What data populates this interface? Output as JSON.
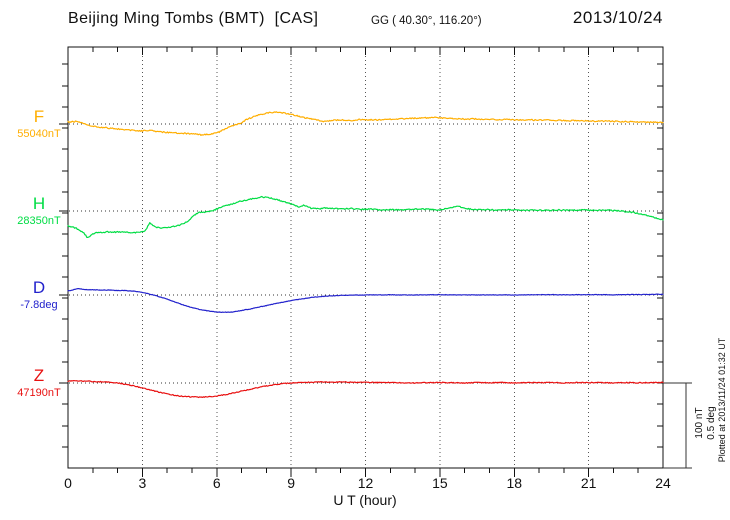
{
  "plotted_note": "Plotted at 2013/11/24 01:32 UT",
  "chart_data": {
    "type": "line",
    "title": "Beijing Ming Tombs (BMT)  [CAS]",
    "subtitle": "GG ( 40.30°, 116.20°)",
    "date": "2013/10/24",
    "xlabel": "U T (hour)",
    "x_range": [
      0,
      24
    ],
    "x_ticks": [
      0,
      3,
      6,
      9,
      12,
      15,
      18,
      21,
      24
    ],
    "grid": "dotted vertical lines every 3 h, dotted horizontal baseline per trace",
    "legend_position": "left",
    "scale_bar": {
      "nT": 100,
      "deg": 0.5,
      "nT_label": "100 nT",
      "deg_label": "0.5 deg"
    },
    "series": [
      {
        "name": "F",
        "baseline_label": "55040nT",
        "baseline_value": 55040,
        "unit": "nT",
        "color": "#FFAE00",
        "points": [
          [
            0,
            2.4
          ],
          [
            0.3,
            2.9
          ],
          [
            0.6,
            1.2
          ],
          [
            0.9,
            -1.8
          ],
          [
            1.2,
            -3.5
          ],
          [
            1.8,
            -5.3
          ],
          [
            2.4,
            -6.8
          ],
          [
            3,
            -8.2
          ],
          [
            3.3,
            -7.1
          ],
          [
            3.7,
            -9.4
          ],
          [
            4.2,
            -10.2
          ],
          [
            4.7,
            -11
          ],
          [
            5.1,
            -11.8
          ],
          [
            5.4,
            -12.9
          ],
          [
            5.8,
            -11.8
          ],
          [
            6.1,
            -9.4
          ],
          [
            6.5,
            -3.5
          ],
          [
            6.7,
            -1.2
          ],
          [
            6.9,
            0
          ],
          [
            7.2,
            5.3
          ],
          [
            7.6,
            10
          ],
          [
            8,
            12.9
          ],
          [
            8.4,
            14.1
          ],
          [
            8.8,
            12.4
          ],
          [
            9.2,
            10
          ],
          [
            9.6,
            7.1
          ],
          [
            10,
            5.3
          ],
          [
            10.3,
            2.9
          ],
          [
            10.6,
            4.1
          ],
          [
            11,
            4.7
          ],
          [
            11.4,
            4.1
          ],
          [
            11.8,
            5.3
          ],
          [
            12.3,
            4.7
          ],
          [
            12.8,
            5.3
          ],
          [
            13.3,
            5.9
          ],
          [
            13.8,
            6.5
          ],
          [
            14.3,
            7.1
          ],
          [
            14.8,
            7.6
          ],
          [
            15.3,
            6.5
          ],
          [
            15.8,
            5.9
          ],
          [
            16.4,
            5.9
          ],
          [
            17,
            5.3
          ],
          [
            17.6,
            5.3
          ],
          [
            18.2,
            4.7
          ],
          [
            18.8,
            4.7
          ],
          [
            19.4,
            4.4
          ],
          [
            20,
            4.1
          ],
          [
            20.6,
            3.8
          ],
          [
            21.2,
            3.5
          ],
          [
            21.8,
            3.2
          ],
          [
            22.4,
            2.9
          ],
          [
            23,
            2.4
          ],
          [
            23.5,
            2.1
          ],
          [
            24,
            1.8
          ]
        ]
      },
      {
        "name": "H",
        "baseline_label": "28350nT",
        "baseline_value": 28350,
        "unit": "nT",
        "color": "#00DD44",
        "points": [
          [
            0,
            -17.6
          ],
          [
            0.3,
            -20
          ],
          [
            0.6,
            -24.7
          ],
          [
            0.8,
            -31.8
          ],
          [
            1,
            -27.1
          ],
          [
            1.2,
            -25.3
          ],
          [
            1.6,
            -24.7
          ],
          [
            2,
            -24.7
          ],
          [
            2.4,
            -25.3
          ],
          [
            2.8,
            -25.3
          ],
          [
            3.1,
            -24.1
          ],
          [
            3.3,
            -14.1
          ],
          [
            3.5,
            -18.8
          ],
          [
            3.8,
            -20
          ],
          [
            4.1,
            -18.8
          ],
          [
            4.4,
            -17.6
          ],
          [
            4.7,
            -14.1
          ],
          [
            4.9,
            -10.6
          ],
          [
            5.1,
            -4.7
          ],
          [
            5.3,
            -1.8
          ],
          [
            5.6,
            -1.2
          ],
          [
            5.9,
            1.2
          ],
          [
            6.2,
            4.7
          ],
          [
            6.6,
            8.2
          ],
          [
            7,
            11.8
          ],
          [
            7.4,
            14.1
          ],
          [
            7.8,
            16.5
          ],
          [
            8.2,
            15.3
          ],
          [
            8.6,
            11.8
          ],
          [
            9,
            8.2
          ],
          [
            9.3,
            4.7
          ],
          [
            9.5,
            6.5
          ],
          [
            9.8,
            3.5
          ],
          [
            10.1,
            2.4
          ],
          [
            10.4,
            3.5
          ],
          [
            10.7,
            2.9
          ],
          [
            11,
            2.4
          ],
          [
            11.4,
            2.9
          ],
          [
            11.8,
            1.8
          ],
          [
            12.2,
            2.4
          ],
          [
            12.6,
            1.2
          ],
          [
            13,
            1.8
          ],
          [
            13.4,
            1.2
          ],
          [
            13.8,
            1.8
          ],
          [
            14.2,
            2.4
          ],
          [
            14.6,
            1.8
          ],
          [
            15,
            1.2
          ],
          [
            15.4,
            3.5
          ],
          [
            15.7,
            5.9
          ],
          [
            16,
            3.5
          ],
          [
            16.3,
            1.8
          ],
          [
            16.8,
            1.8
          ],
          [
            17.3,
            1.2
          ],
          [
            17.8,
            1.5
          ],
          [
            18.3,
            0.9
          ],
          [
            18.8,
            1.2
          ],
          [
            19.3,
            0.6
          ],
          [
            19.8,
            1.2
          ],
          [
            20.3,
            0.9
          ],
          [
            20.8,
            1.2
          ],
          [
            21.3,
            0.6
          ],
          [
            21.8,
            0.9
          ],
          [
            22.3,
            0
          ],
          [
            22.8,
            -1.8
          ],
          [
            23.2,
            -4.1
          ],
          [
            23.6,
            -7.1
          ],
          [
            24,
            -10.6
          ]
        ]
      },
      {
        "name": "D",
        "baseline_label": "-7.8deg",
        "baseline_value": -7.8,
        "unit": "deg",
        "color": "#2222CC",
        "points": [
          [
            0,
            0.024
          ],
          [
            0.4,
            0.038
          ],
          [
            0.7,
            0.032
          ],
          [
            1,
            0.031
          ],
          [
            1.4,
            0.029
          ],
          [
            1.8,
            0.028
          ],
          [
            2.2,
            0.026
          ],
          [
            2.6,
            0.024
          ],
          [
            3,
            0.015
          ],
          [
            3.4,
            0.002
          ],
          [
            3.8,
            -0.015
          ],
          [
            4.2,
            -0.035
          ],
          [
            4.6,
            -0.056
          ],
          [
            5,
            -0.074
          ],
          [
            5.4,
            -0.088
          ],
          [
            5.8,
            -0.097
          ],
          [
            6.2,
            -0.102
          ],
          [
            6.6,
            -0.101
          ],
          [
            7,
            -0.091
          ],
          [
            7.4,
            -0.081
          ],
          [
            7.8,
            -0.068
          ],
          [
            8.2,
            -0.056
          ],
          [
            8.6,
            -0.044
          ],
          [
            9,
            -0.032
          ],
          [
            9.4,
            -0.024
          ],
          [
            9.8,
            -0.015
          ],
          [
            10.2,
            -0.009
          ],
          [
            10.6,
            -0.005
          ],
          [
            11,
            -0.003
          ],
          [
            11.5,
            -0.001
          ],
          [
            12,
            0
          ],
          [
            13,
            0.001
          ],
          [
            14,
            0
          ],
          [
            15,
            0.002
          ],
          [
            16,
            0
          ],
          [
            17,
            0.001
          ],
          [
            18,
            0
          ],
          [
            19,
            0.002
          ],
          [
            20,
            0.001
          ],
          [
            21,
            0.002
          ],
          [
            22,
            0.001
          ],
          [
            23,
            0.003
          ],
          [
            24,
            0.004
          ]
        ]
      },
      {
        "name": "Z",
        "baseline_label": "47190nT",
        "baseline_value": 47190,
        "unit": "nT",
        "color": "#E81010",
        "points": [
          [
            0,
            2.4
          ],
          [
            0.5,
            2.4
          ],
          [
            1,
            1.8
          ],
          [
            1.5,
            1.2
          ],
          [
            2,
            0
          ],
          [
            2.5,
            -2.4
          ],
          [
            3,
            -5.9
          ],
          [
            3.5,
            -9.4
          ],
          [
            4,
            -12.9
          ],
          [
            4.5,
            -15.3
          ],
          [
            5,
            -16.5
          ],
          [
            5.5,
            -16.5
          ],
          [
            6,
            -15.3
          ],
          [
            6.5,
            -12.9
          ],
          [
            7,
            -9.4
          ],
          [
            7.5,
            -6.5
          ],
          [
            8,
            -3.5
          ],
          [
            8.5,
            -1.2
          ],
          [
            9,
            0
          ],
          [
            9.5,
            0.6
          ],
          [
            10,
            1.2
          ],
          [
            10.5,
            1.2
          ],
          [
            11,
            1.2
          ],
          [
            11.5,
            0.9
          ],
          [
            12,
            0.6
          ],
          [
            12.5,
            0.6
          ],
          [
            13,
            0.6
          ],
          [
            13.5,
            0.3
          ],
          [
            14,
            0
          ],
          [
            14.5,
            0.6
          ],
          [
            15,
            0.6
          ],
          [
            15.5,
            0.3
          ],
          [
            16,
            0
          ],
          [
            16.5,
            0.6
          ],
          [
            17,
            0.3
          ],
          [
            17.5,
            0.6
          ],
          [
            18,
            0
          ],
          [
            18.5,
            0.6
          ],
          [
            19,
            0.3
          ],
          [
            19.5,
            0.6
          ],
          [
            20,
            0
          ],
          [
            20.5,
            0.6
          ],
          [
            21,
            0.3
          ],
          [
            21.5,
            0.6
          ],
          [
            22,
            0
          ],
          [
            22.5,
            0.6
          ],
          [
            23,
            0.3
          ],
          [
            23.5,
            0.6
          ],
          [
            24,
            0.6
          ]
        ]
      }
    ]
  }
}
